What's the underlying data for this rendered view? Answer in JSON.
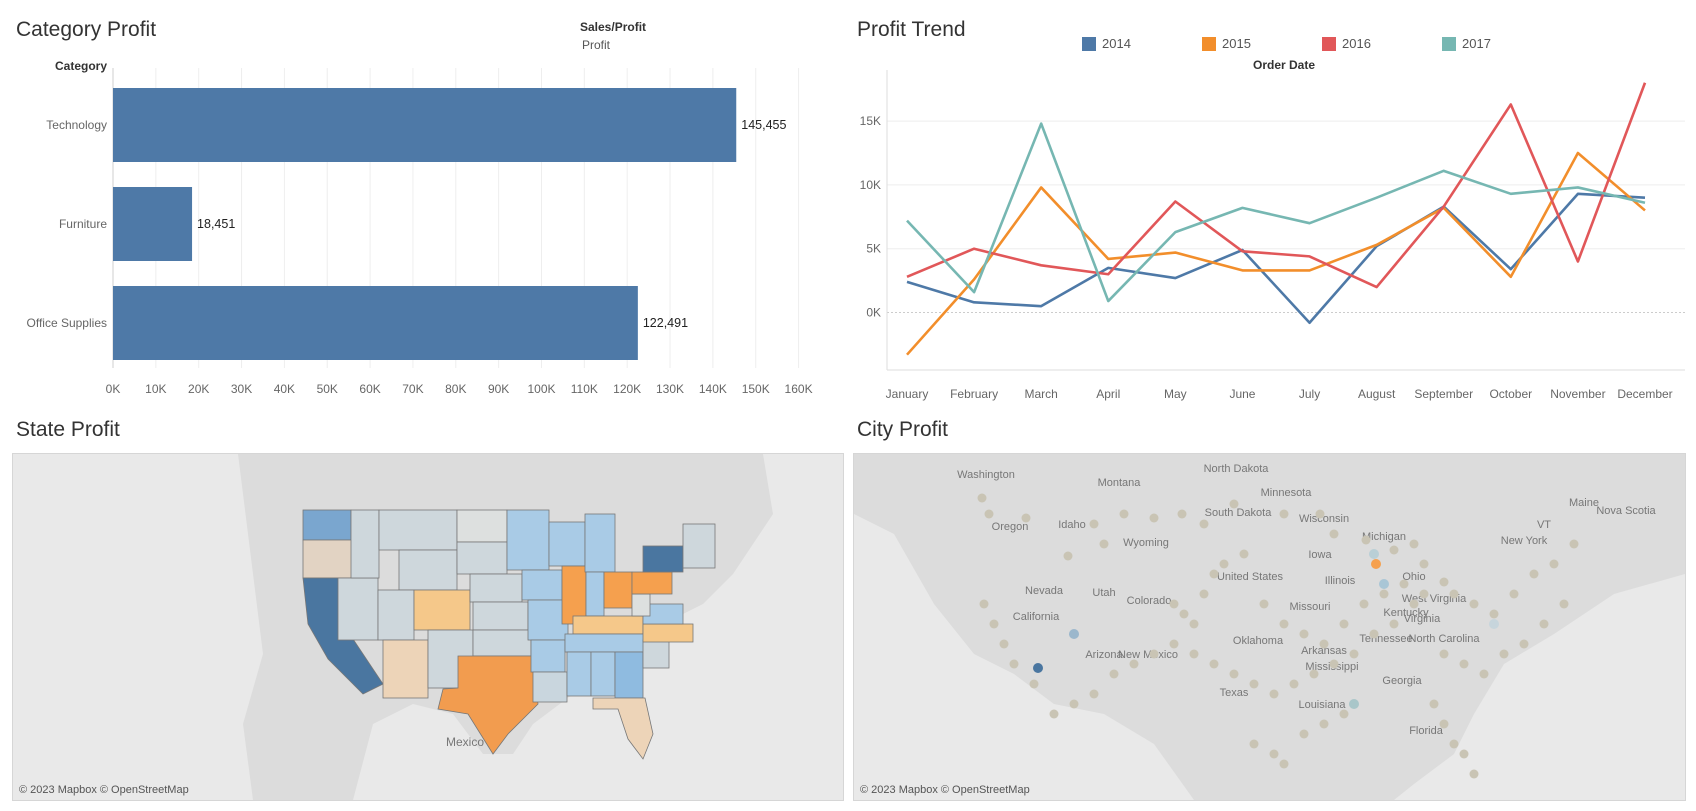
{
  "category_panel": {
    "title": "Category Profit",
    "header_measure": "Sales/Profit",
    "header_sub": "Profit",
    "row_header": "Category"
  },
  "trend_panel": {
    "title": "Profit Trend",
    "axis_title": "Order Date"
  },
  "state_panel": {
    "title": "State Profit",
    "credit": "© 2023 Mapbox © OpenStreetMap",
    "place_label": "Mexico"
  },
  "city_panel": {
    "title": "City Profit",
    "credit": "© 2023 Mapbox © OpenStreetMap",
    "place_labels": [
      "Washington",
      "Montana",
      "North Dakota",
      "Minnesota",
      "Oregon",
      "Idaho",
      "South Dakota",
      "Wisconsin",
      "Michigan",
      "Maine",
      "Nova Scotia",
      "Wyoming",
      "Iowa",
      "New York",
      "Nevada",
      "Utah",
      "United States",
      "Colorado",
      "Illinois",
      "Ohio",
      "California",
      "West Virginia",
      "Kentucky",
      "Missouri",
      "Virginia",
      "North Carolina",
      "Tennessee",
      "Arizona",
      "New Mexico",
      "Oklahoma",
      "Arkansas",
      "Mississippi",
      "Georgia",
      "Texas",
      "Louisiana",
      "Florida",
      "VT"
    ]
  },
  "colors": {
    "bar": "#4e79a7",
    "s2014": "#4e79a7",
    "s2015": "#f28e2b",
    "s2016": "#e15759",
    "s2017": "#76b7b2",
    "map_bg": "#e9e9e9"
  },
  "chart_data": [
    {
      "type": "bar",
      "orientation": "horizontal",
      "categories": [
        "Technology",
        "Furniture",
        "Office Supplies"
      ],
      "values": [
        145455,
        18451,
        122491
      ],
      "value_labels": [
        "145,455",
        "18,451",
        "122,491"
      ],
      "xlim": [
        0,
        165000
      ],
      "ticks": [
        0,
        10000,
        20000,
        30000,
        40000,
        50000,
        60000,
        70000,
        80000,
        90000,
        100000,
        110000,
        120000,
        130000,
        140000,
        150000,
        160000
      ],
      "tick_labels": [
        "0K",
        "10K",
        "20K",
        "30K",
        "40K",
        "50K",
        "60K",
        "70K",
        "80K",
        "90K",
        "100K",
        "110K",
        "120K",
        "130K",
        "140K",
        "150K",
        "160K"
      ]
    },
    {
      "type": "line",
      "categories": [
        "January",
        "February",
        "March",
        "April",
        "May",
        "June",
        "July",
        "August",
        "September",
        "October",
        "November",
        "December"
      ],
      "series": [
        {
          "name": "2014",
          "color": "#4e79a7",
          "values": [
            2400,
            800,
            500,
            3500,
            2700,
            4900,
            -800,
            5200,
            8300,
            3400,
            9300,
            9000
          ]
        },
        {
          "name": "2015",
          "color": "#f28e2b",
          "values": [
            -3300,
            2600,
            9800,
            4200,
            4700,
            3300,
            3300,
            5300,
            8200,
            2800,
            12500,
            8000
          ]
        },
        {
          "name": "2016",
          "color": "#e15759",
          "values": [
            2800,
            5000,
            3700,
            3000,
            8700,
            4800,
            4400,
            2000,
            8300,
            16300,
            4000,
            18000
          ]
        },
        {
          "name": "2017",
          "color": "#76b7b2",
          "values": [
            7200,
            1600,
            14800,
            900,
            6300,
            8200,
            7000,
            9000,
            11100,
            9300,
            9800,
            8600
          ]
        }
      ],
      "ylim": [
        -4500,
        19000
      ],
      "yticks": [
        0,
        5000,
        10000,
        15000
      ],
      "ytick_labels": [
        "0K",
        "5K",
        "10K",
        "15K"
      ]
    }
  ]
}
